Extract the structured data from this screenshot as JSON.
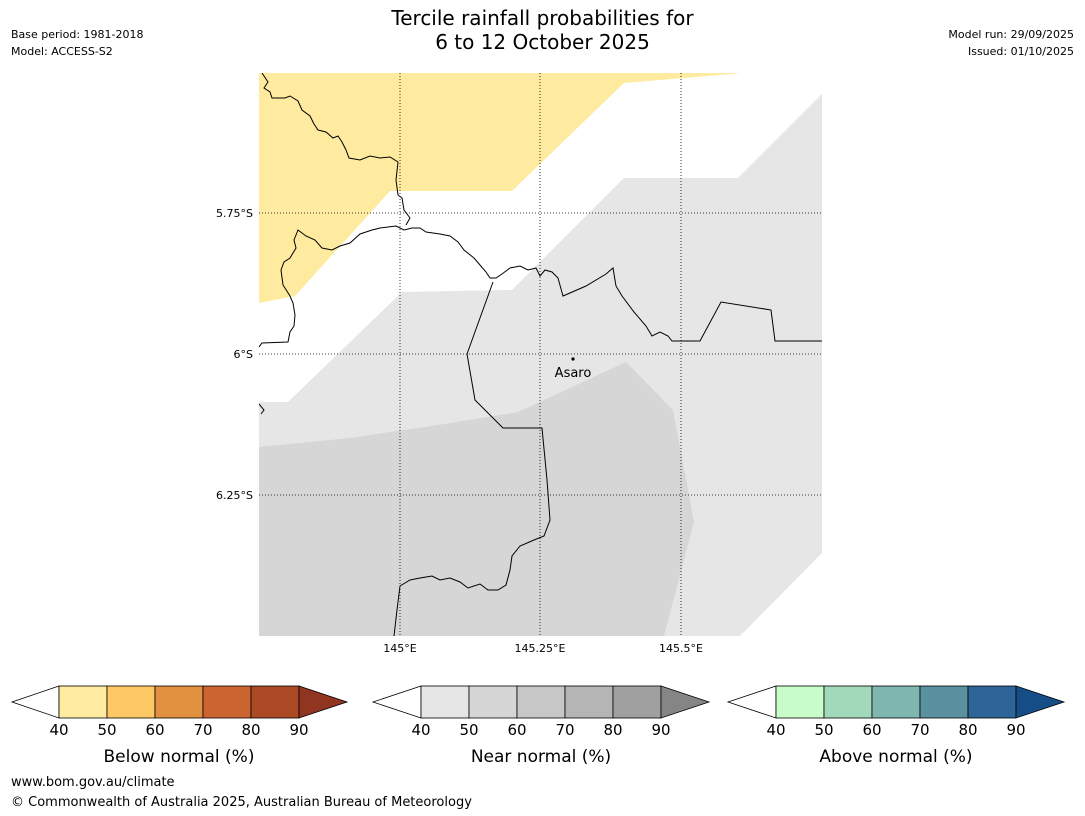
{
  "header": {
    "title_line1": "Tercile rainfall probabilities for",
    "title_line2": "6 to 12 October 2025",
    "base_period": "Base period: 1981-2018",
    "model": "Model: ACCESS-S2",
    "model_run": "Model run: 29/09/2025",
    "issued": "Issued: 01/10/2025"
  },
  "map": {
    "latitude_labels": [
      "5.75°S",
      "6°S",
      "6.25°S"
    ],
    "longitude_labels": [
      "145°E",
      "145.25°E",
      "145.5°E"
    ],
    "place_label": "Asaro"
  },
  "legends": {
    "ticks": [
      "40",
      "50",
      "60",
      "70",
      "80",
      "90"
    ],
    "below": {
      "label": "Below normal (%)",
      "colors": [
        "#ffffff",
        "#feeba0",
        "#fec964",
        "#e0903f",
        "#cb6430",
        "#ac4a25",
        "#8f3520"
      ]
    },
    "near": {
      "label": "Near normal (%)",
      "colors": [
        "#ffffff",
        "#e6e6e6",
        "#d6d6d6",
        "#c7c7c7",
        "#b5b5b5",
        "#a0a0a0",
        "#858585"
      ]
    },
    "above": {
      "label": "Above normal (%)",
      "colors": [
        "#ffffff",
        "#c8fcc8",
        "#a3d9bb",
        "#7fb7b0",
        "#5a91a1",
        "#2e6599",
        "#154d86"
      ]
    }
  },
  "footer": {
    "line1": "www.bom.gov.au/climate",
    "line2": "© Commonwealth of Australia 2025, Australian Bureau of Meteorology"
  }
}
